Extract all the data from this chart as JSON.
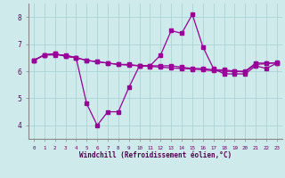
{
  "xlabel": "Windchill (Refroidissement éolien,°C)",
  "ylabel": "",
  "xlim": [
    -0.5,
    23.5
  ],
  "ylim": [
    3.5,
    8.5
  ],
  "yticks": [
    4,
    5,
    6,
    7,
    8
  ],
  "xticks": [
    0,
    1,
    2,
    3,
    4,
    5,
    6,
    7,
    8,
    9,
    10,
    11,
    12,
    13,
    14,
    15,
    16,
    17,
    18,
    19,
    20,
    21,
    22,
    23
  ],
  "bg_color": "#ceeaea",
  "line_color": "#990099",
  "grid_color": "#aad4d4",
  "series1": [
    6.4,
    6.6,
    6.6,
    6.6,
    6.5,
    4.8,
    4.0,
    4.5,
    4.5,
    5.4,
    6.2,
    6.2,
    6.6,
    7.5,
    7.4,
    8.1,
    6.9,
    6.1,
    5.9,
    5.9,
    5.9,
    6.2,
    6.1,
    6.3
  ],
  "series2": [
    6.4,
    6.6,
    6.65,
    6.55,
    6.5,
    6.4,
    6.35,
    6.3,
    6.25,
    6.25,
    6.2,
    6.2,
    6.2,
    6.2,
    6.15,
    6.1,
    6.1,
    6.05,
    6.05,
    6.0,
    6.0,
    6.3,
    6.3,
    6.3
  ],
  "series3": [
    6.4,
    6.6,
    6.65,
    6.55,
    6.5,
    6.4,
    6.35,
    6.3,
    6.25,
    6.22,
    6.2,
    6.18,
    6.15,
    6.12,
    6.1,
    6.08,
    6.05,
    6.02,
    6.0,
    5.99,
    5.98,
    6.25,
    6.28,
    6.32
  ]
}
